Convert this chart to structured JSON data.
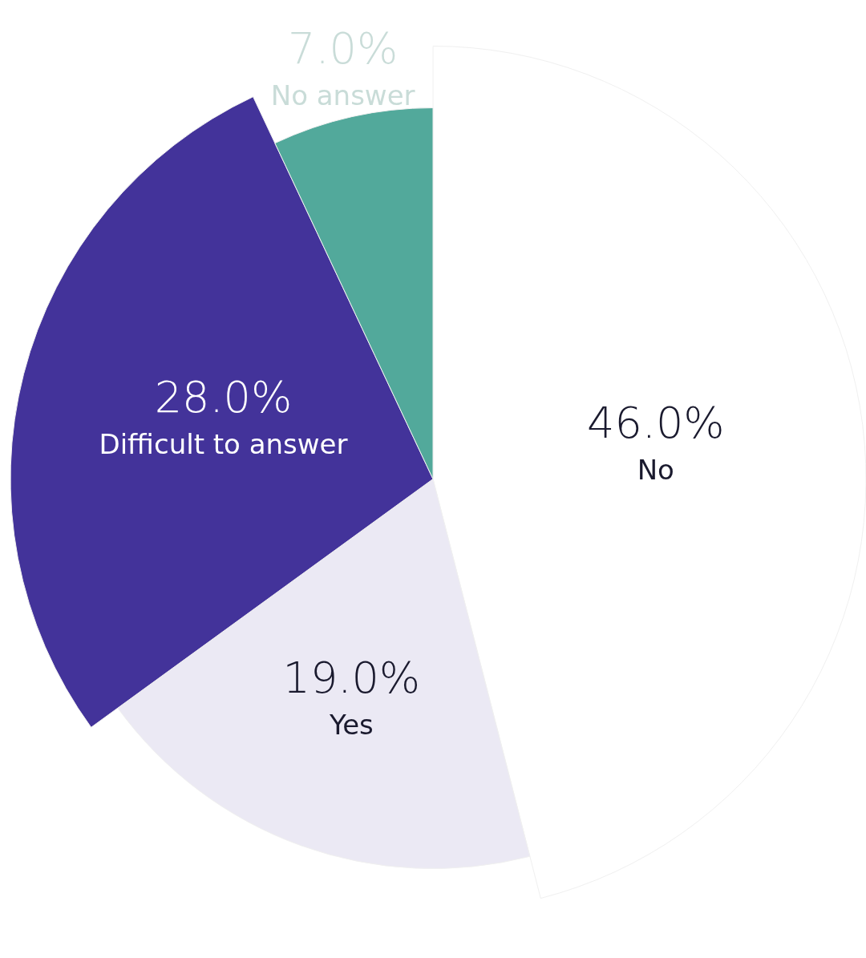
{
  "chart_data": {
    "type": "pie",
    "categories": [
      "No",
      "Yes",
      "Difficult to answer",
      "No answer"
    ],
    "values": [
      46,
      19,
      28,
      7
    ],
    "colors": [
      "#ffffff",
      "#ebe9f4",
      "#43339a",
      "#52a99b"
    ],
    "value_labels": [
      "46.0%",
      "19.0%",
      "28.0%",
      "7.0%"
    ]
  }
}
